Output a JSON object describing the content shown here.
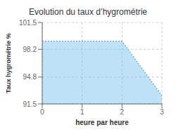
{
  "chart_data": {
    "type": "area",
    "title": "Evolution du taux d’hygrométrie",
    "xlabel": "heure par heure",
    "ylabel": "Taux hygrométrie %",
    "x": [
      0,
      1,
      2,
      3
    ],
    "values": [
      99.2,
      99.2,
      99.2,
      92.5
    ],
    "color": "#60b8e8",
    "line_style": "dotted",
    "xlim": [
      0,
      3
    ],
    "ylim": [
      91.5,
      101.5
    ],
    "xticks": [
      0,
      1,
      2,
      3
    ],
    "yticks": [
      91.5,
      94.8,
      98.2,
      101.5
    ],
    "grid": true
  }
}
